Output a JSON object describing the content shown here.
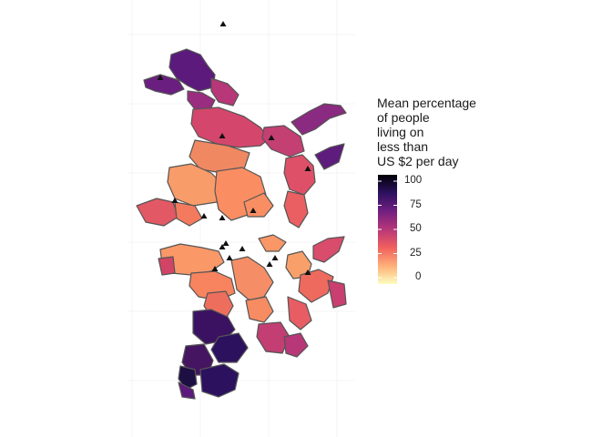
{
  "legend": {
    "title_lines": [
      "Mean percentage",
      "of people",
      "living on",
      "less than",
      "US $2 per day"
    ],
    "ticks": [
      {
        "value": 100,
        "label": "100"
      },
      {
        "value": 75,
        "label": "75"
      },
      {
        "value": 50,
        "label": "50"
      },
      {
        "value": 25,
        "label": "25"
      },
      {
        "value": 0,
        "label": "0"
      }
    ],
    "gradient_colors": [
      "#fcfdbf",
      "#feb078",
      "#f1605d",
      "#b73779",
      "#721f81",
      "#2c115f",
      "#000004"
    ]
  },
  "map": {
    "palette": "magma",
    "fill_variable": "Mean percentage of people living on less than US $2 per day",
    "marker": "triangle",
    "border_color": "#555555"
  }
}
